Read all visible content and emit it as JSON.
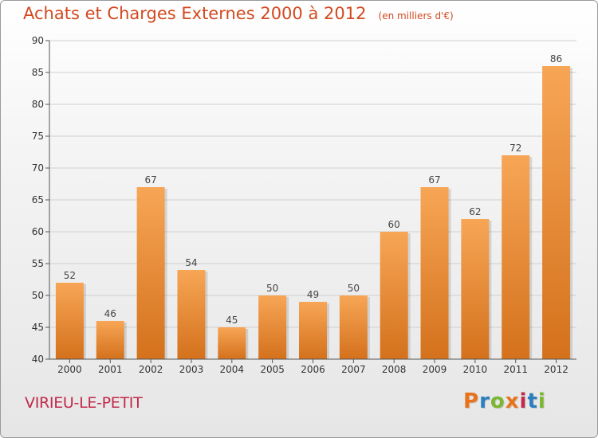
{
  "title": "Achats et Charges Externes 2000 à 2012",
  "subtitle": "(en milliers d'€)",
  "place_name": "VIRIEU-LE-PETIT",
  "brand": "Proxiti",
  "brand_colors": [
    "#e8731a",
    "#2a7fc1",
    "#7bb72f",
    "#e8731a",
    "#c2294a",
    "#2a7fc1",
    "#7bb72f"
  ],
  "colors": {
    "title": "#d2491f",
    "place_name": "#c2294a",
    "bar_top": "#f7a656",
    "bar_bottom": "#d4711c",
    "grid": "#d0d0d0"
  },
  "chart_data": {
    "type": "bar",
    "categories": [
      "2000",
      "2001",
      "2002",
      "2003",
      "2004",
      "2005",
      "2006",
      "2007",
      "2008",
      "2009",
      "2010",
      "2011",
      "2012"
    ],
    "values": [
      52,
      46,
      67,
      54,
      45,
      50,
      49,
      50,
      60,
      67,
      62,
      72,
      86
    ],
    "ylim": [
      40,
      90
    ],
    "yticks": [
      40,
      45,
      50,
      55,
      60,
      65,
      70,
      75,
      80,
      85,
      90
    ],
    "grid": true,
    "legend": "none"
  }
}
